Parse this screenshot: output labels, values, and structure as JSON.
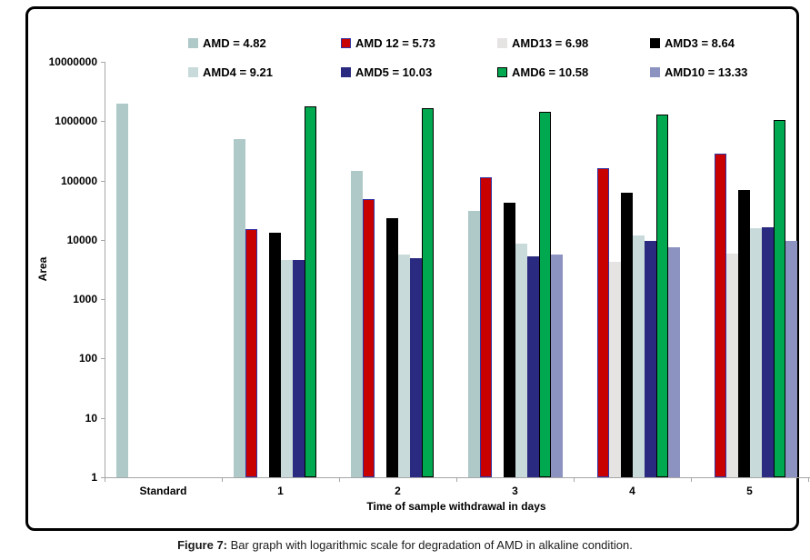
{
  "figure": {
    "caption_label": "Figure 7:",
    "caption_text": " Bar graph with logarithmic scale for degradation of AMD in alkaline condition."
  },
  "chart_data": {
    "type": "bar",
    "scale": "log",
    "title": "",
    "xlabel": "Time of sample withdrawal in days",
    "ylabel": "Area",
    "ylim": [
      1,
      10000000
    ],
    "y_tick_labels": [
      "1",
      "10",
      "100",
      "1000",
      "10000",
      "100000",
      "1000000",
      "10000000"
    ],
    "categories": [
      "Standard",
      "1",
      "2",
      "3",
      "4",
      "5"
    ],
    "grid": false,
    "legend_position": "top",
    "legend_rows": 2,
    "axis_color": "#a6a6a6",
    "series": [
      {
        "name": "AMD",
        "legend_label": "AMD = 4.82",
        "color": "#AFC9C9",
        "border": "#AFC9C9",
        "values": [
          2000000,
          500000,
          145000,
          31000,
          null,
          null
        ]
      },
      {
        "name": "AMD 12",
        "legend_label": "AMD 12 = 5.73",
        "color": "#C80000",
        "border": "#3333A3",
        "values": [
          null,
          15000,
          48000,
          115000,
          160000,
          280000
        ]
      },
      {
        "name": "AMD13",
        "legend_label": "AMD13 = 6.98",
        "color": "#E6E3E3",
        "border": "#E6E3E3",
        "values": [
          null,
          null,
          null,
          null,
          4300,
          5800
        ]
      },
      {
        "name": "AMD3",
        "legend_label": "AMD3 = 8.64",
        "color": "#000000",
        "border": "#000000",
        "values": [
          null,
          13000,
          23000,
          42000,
          62000,
          70000
        ]
      },
      {
        "name": "AMD4",
        "legend_label": "AMD4 = 9.21",
        "color": "#C9DADA",
        "border": "#C9DADA",
        "values": [
          null,
          4600,
          5600,
          8500,
          12000,
          16000
        ]
      },
      {
        "name": "AMD5",
        "legend_label": "AMD5 = 10.03",
        "color": "#2A2A80",
        "border": "#2A2A80",
        "values": [
          null,
          4500,
          5000,
          5300,
          9600,
          16500
        ]
      },
      {
        "name": "AMD6",
        "legend_label": "AMD6 = 10.58",
        "color": "#00A950",
        "border": "#000000",
        "values": [
          null,
          1800000,
          1650000,
          1450000,
          1300000,
          1050000
        ]
      },
      {
        "name": "AMD10",
        "legend_label": "AMD10 = 13.33",
        "color": "#8C93C1",
        "border": "#8C93C1",
        "values": [
          null,
          null,
          null,
          5600,
          7500,
          9500
        ]
      }
    ]
  }
}
